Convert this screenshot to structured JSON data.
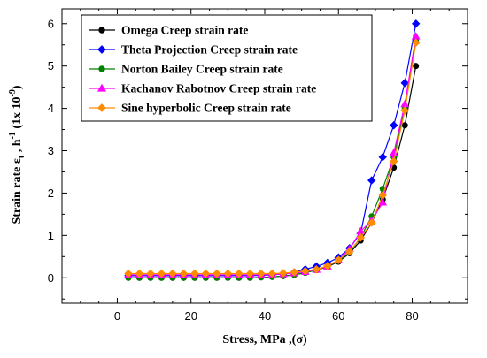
{
  "chart_data": {
    "type": "line",
    "xlabel": "Stress,  MPa ,(σ)",
    "ylabel_main": "Strain rate ε",
    "ylabel_sub": "t",
    "ylabel_mid": " , h",
    "ylabel_sup1": "-1",
    "ylabel_mid2": "  (1x 10",
    "ylabel_sup2": "-9",
    "ylabel_end": ")",
    "xlim": [
      -15,
      95
    ],
    "ylim": [
      -0.6,
      6.35
    ],
    "x_ticks": [
      0,
      20,
      40,
      60,
      80
    ],
    "y_ticks": [
      0,
      1,
      2,
      3,
      4,
      5,
      6
    ],
    "grid": false,
    "legend_position": "top-left",
    "x": [
      3,
      6,
      9,
      12,
      15,
      18,
      21,
      24,
      27,
      30,
      33,
      36,
      39,
      42,
      45,
      48,
      51,
      54,
      57,
      60,
      63,
      66,
      69,
      72,
      75,
      78,
      81
    ],
    "series": [
      {
        "name": "Omega Creep strain rate",
        "color": "#000000",
        "marker": "circle",
        "values": [
          0,
          0,
          0,
          0,
          0,
          0,
          0,
          0,
          0,
          0,
          0,
          0,
          0.01,
          0.02,
          0.04,
          0.07,
          0.12,
          0.18,
          0.26,
          0.38,
          0.58,
          0.88,
          1.3,
          1.85,
          2.6,
          3.6,
          5.0
        ]
      },
      {
        "name": "Theta Projection Creep strain rate",
        "color": "#0000ff",
        "marker": "diamond",
        "values": [
          0.05,
          0.05,
          0.05,
          0.05,
          0.05,
          0.05,
          0.05,
          0.05,
          0.05,
          0.05,
          0.05,
          0.05,
          0.06,
          0.07,
          0.09,
          0.13,
          0.2,
          0.27,
          0.35,
          0.48,
          0.7,
          1.05,
          2.3,
          2.85,
          3.6,
          4.6,
          6.0
        ]
      },
      {
        "name": "Norton Bailey Creep strain rate",
        "color": "#008000",
        "marker": "circle",
        "values": [
          0,
          0,
          0,
          0,
          0,
          0,
          0,
          0,
          0,
          0,
          0,
          0,
          0.01,
          0.02,
          0.04,
          0.07,
          0.12,
          0.18,
          0.27,
          0.4,
          0.6,
          0.95,
          1.45,
          2.1,
          2.85,
          4.0,
          5.6
        ]
      },
      {
        "name": "Kachanov Rabotnov Creep strain rate",
        "color": "#ff00ff",
        "marker": "triangle",
        "values": [
          0.07,
          0.07,
          0.07,
          0.07,
          0.07,
          0.07,
          0.07,
          0.07,
          0.07,
          0.07,
          0.07,
          0.07,
          0.07,
          0.08,
          0.09,
          0.11,
          0.14,
          0.19,
          0.27,
          0.42,
          0.68,
          1.1,
          1.35,
          1.78,
          2.95,
          4.1,
          5.7
        ]
      },
      {
        "name": "Sine hyperbolic Creep strain rate",
        "color": "#ff8c00",
        "marker": "diamond",
        "values": [
          0.1,
          0.1,
          0.1,
          0.1,
          0.1,
          0.1,
          0.1,
          0.1,
          0.1,
          0.1,
          0.1,
          0.1,
          0.1,
          0.1,
          0.11,
          0.13,
          0.16,
          0.2,
          0.28,
          0.42,
          0.62,
          0.95,
          1.3,
          1.95,
          2.75,
          3.95,
          5.55
        ]
      }
    ]
  }
}
